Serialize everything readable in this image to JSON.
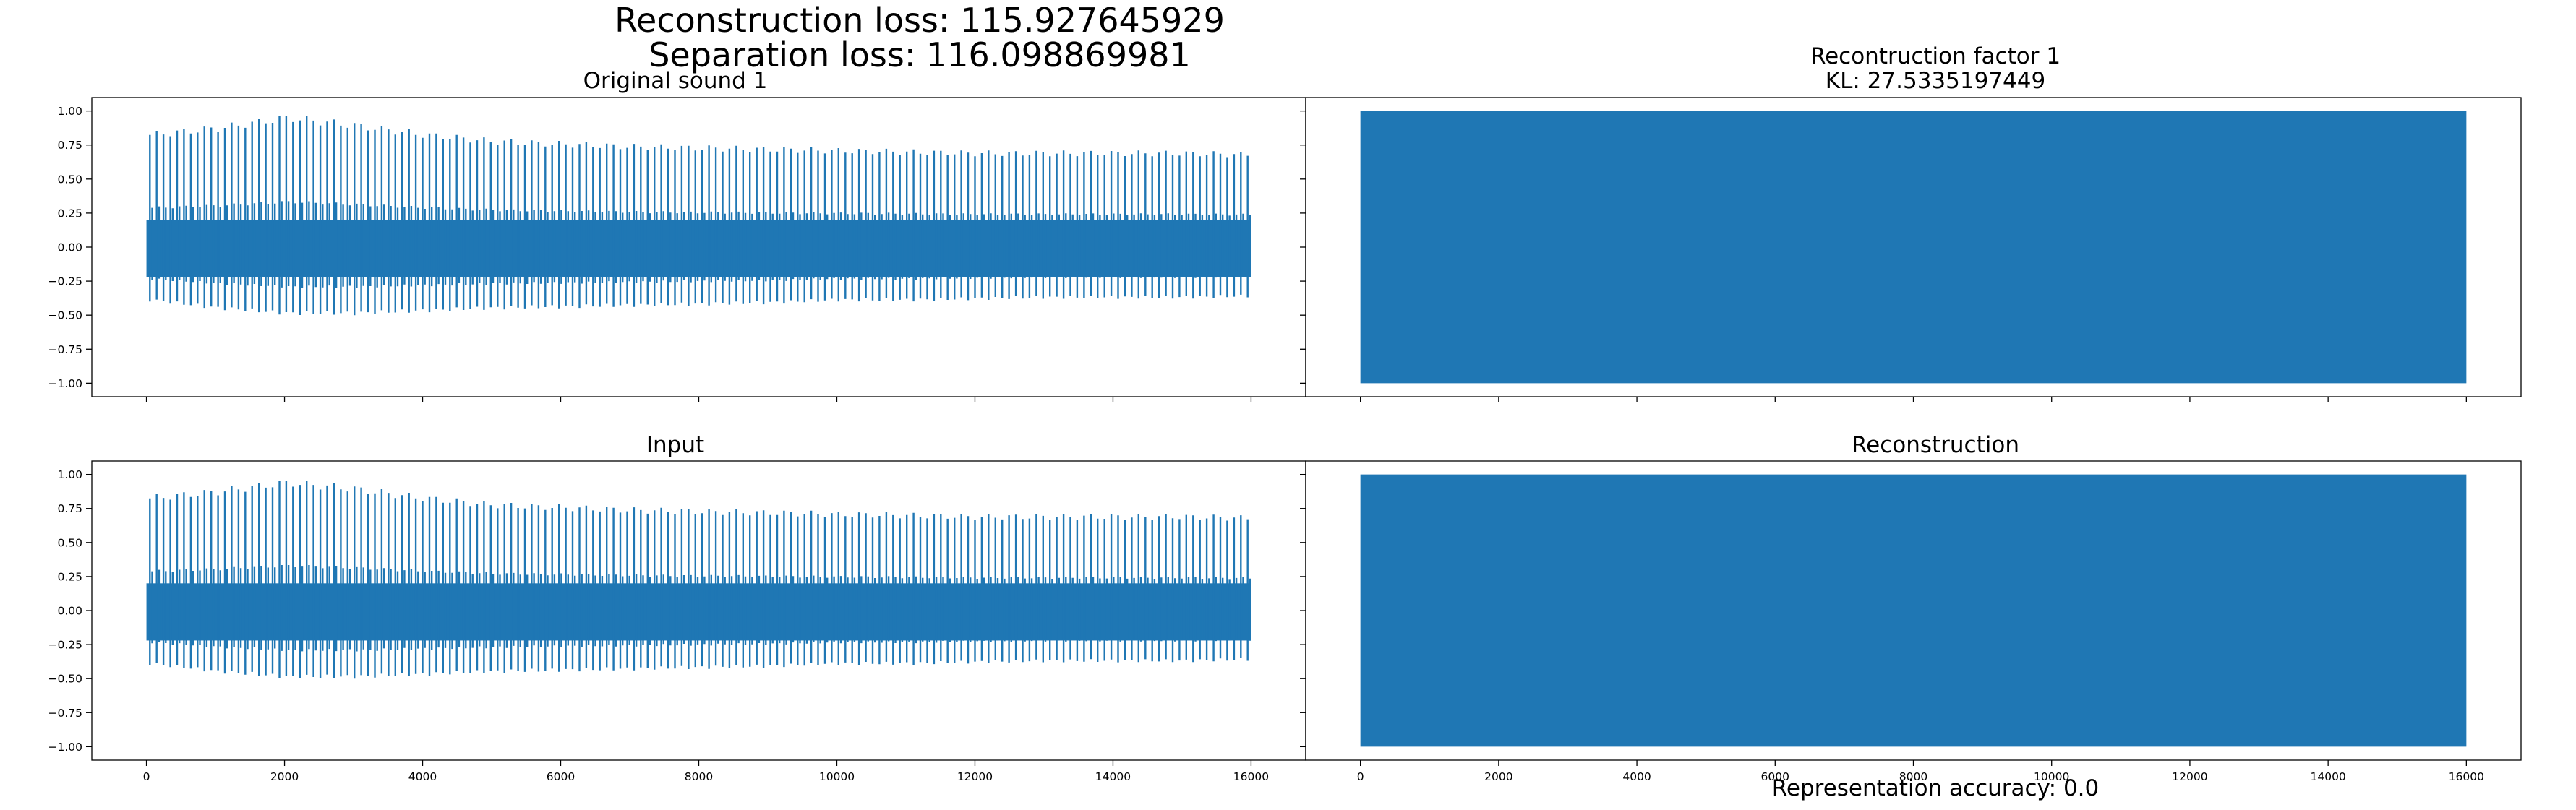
{
  "figure": {
    "suptitle_line1": "Reconstruction loss: 115.927645929",
    "suptitle_line2": "Separation loss: 116.098869981",
    "footer": "Representation accuracy: 0.0",
    "colors": {
      "series": "#1f77b4",
      "axes": "#000000",
      "background": "#ffffff"
    }
  },
  "chart_data": [
    {
      "id": "orig",
      "type": "line",
      "title": "Original sound 1",
      "subtitle": "",
      "xlim": [
        0,
        16000
      ],
      "ylim": [
        -1.0,
        1.0
      ],
      "yticks": [
        -1.0,
        -0.75,
        -0.5,
        -0.25,
        0.0,
        0.25,
        0.5,
        0.75,
        1.0
      ],
      "ytick_labels": [
        "−1.00",
        "−0.75",
        "−0.50",
        "−0.25",
        "0.00",
        "0.25",
        "0.50",
        "0.75",
        "1.00"
      ],
      "xticks": [
        0,
        2000,
        4000,
        6000,
        8000,
        10000,
        12000,
        14000,
        16000
      ],
      "xtick_labels": [],
      "series": [
        {
          "x_range": [
            0,
            16000
          ],
          "n_peaks": 162,
          "peak_max": [
            0.85,
            0.9,
            0.98,
            0.92,
            0.85,
            0.8,
            0.78,
            0.76,
            0.75,
            0.74,
            0.73,
            0.72,
            0.71,
            0.71,
            0.71,
            0.71,
            0.7
          ],
          "peak_min": [
            -0.4,
            -0.46,
            -0.5,
            -0.5,
            -0.48,
            -0.46,
            -0.45,
            -0.44,
            -0.43,
            -0.42,
            -0.4,
            -0.4,
            -0.39,
            -0.38,
            -0.38,
            -0.38,
            -0.37
          ],
          "band": [
            -0.22,
            0.2
          ]
        }
      ]
    },
    {
      "id": "recfac",
      "type": "line",
      "title": "Recontruction factor 1",
      "subtitle": "KL: 27.5335197449",
      "xlim": [
        0,
        16000
      ],
      "ylim": [
        -1.0,
        1.0
      ],
      "yticks": [
        -1.0,
        -0.75,
        -0.5,
        -0.25,
        0.0,
        0.25,
        0.5,
        0.75,
        1.0
      ],
      "ytick_labels": [],
      "xticks": [
        0,
        2000,
        4000,
        6000,
        8000,
        10000,
        12000,
        14000,
        16000
      ],
      "xtick_labels": [],
      "series": [
        {
          "x_range": [
            0,
            16000
          ],
          "y_min": -1.0,
          "y_max": 1.0,
          "note": "dense full-scale noise"
        }
      ]
    },
    {
      "id": "input",
      "type": "line",
      "title": "Input",
      "subtitle": "",
      "xlim": [
        0,
        16000
      ],
      "ylim": [
        -1.0,
        1.0
      ],
      "yticks": [
        -1.0,
        -0.75,
        -0.5,
        -0.25,
        0.0,
        0.25,
        0.5,
        0.75,
        1.0
      ],
      "ytick_labels": [
        "−1.00",
        "−0.75",
        "−0.50",
        "−0.25",
        "0.00",
        "0.25",
        "0.50",
        "0.75",
        "1.00"
      ],
      "xticks": [
        0,
        2000,
        4000,
        6000,
        8000,
        10000,
        12000,
        14000,
        16000
      ],
      "xtick_labels": [
        "0",
        "2000",
        "4000",
        "6000",
        "8000",
        "10000",
        "12000",
        "14000",
        "16000"
      ],
      "series": [
        {
          "x_range": [
            0,
            16000
          ],
          "n_peaks": 162,
          "peak_max": [
            0.85,
            0.9,
            0.97,
            0.92,
            0.85,
            0.8,
            0.78,
            0.76,
            0.75,
            0.74,
            0.73,
            0.72,
            0.71,
            0.71,
            0.71,
            0.71,
            0.7
          ],
          "peak_min": [
            -0.4,
            -0.46,
            -0.5,
            -0.5,
            -0.48,
            -0.46,
            -0.45,
            -0.44,
            -0.43,
            -0.42,
            -0.4,
            -0.4,
            -0.39,
            -0.38,
            -0.38,
            -0.38,
            -0.37
          ],
          "band": [
            -0.22,
            0.2
          ]
        }
      ]
    },
    {
      "id": "recon",
      "type": "line",
      "title": "Reconstruction",
      "subtitle": "",
      "xlim": [
        0,
        16000
      ],
      "ylim": [
        -1.0,
        1.0
      ],
      "yticks": [
        -1.0,
        -0.75,
        -0.5,
        -0.25,
        0.0,
        0.25,
        0.5,
        0.75,
        1.0
      ],
      "ytick_labels": [],
      "xticks": [
        0,
        2000,
        4000,
        6000,
        8000,
        10000,
        12000,
        14000,
        16000
      ],
      "xtick_labels": [
        "0",
        "2000",
        "4000",
        "6000",
        "8000",
        "10000",
        "12000",
        "14000",
        "16000"
      ],
      "series": [
        {
          "x_range": [
            0,
            16000
          ],
          "y_min": -1.0,
          "y_max": 1.0,
          "note": "dense full-scale noise"
        }
      ]
    }
  ]
}
